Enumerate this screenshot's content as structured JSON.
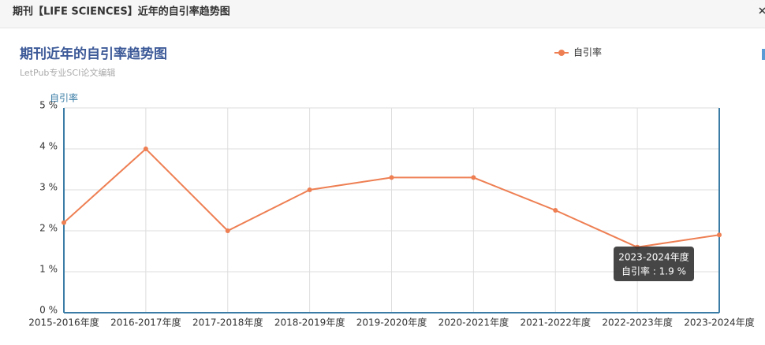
{
  "header": {
    "title": "期刊【LIFE SCIENCES】近年的自引率趋势图"
  },
  "chart_data": {
    "type": "line",
    "title": "期刊近年的自引率趋势图",
    "subtitle": "LetPub专业SCI论文编辑",
    "y_label": "自引率",
    "categories": [
      "2015-2016年度",
      "2016-2017年度",
      "2017-2018年度",
      "2018-2019年度",
      "2019-2020年度",
      "2020-2021年度",
      "2021-2022年度",
      "2022-2023年度",
      "2023-2024年度"
    ],
    "series": [
      {
        "name": "自引率",
        "color": "#ee7f53",
        "values": [
          2.2,
          4.0,
          2.0,
          3.0,
          3.3,
          3.3,
          2.5,
          1.6,
          1.9
        ]
      }
    ],
    "ylim": [
      0,
      5
    ],
    "yticks": [
      {
        "value": 0,
        "label": "0 %"
      },
      {
        "value": 1,
        "label": "1 %"
      },
      {
        "value": 2,
        "label": "2 %"
      },
      {
        "value": 3,
        "label": "3 %"
      },
      {
        "value": 4,
        "label": "4 %"
      },
      {
        "value": 5,
        "label": "5 %"
      }
    ],
    "grid": true,
    "legend": "top",
    "tooltip": {
      "title": "2023-2024年度",
      "text": "自引率 : 1.9 %"
    }
  }
}
